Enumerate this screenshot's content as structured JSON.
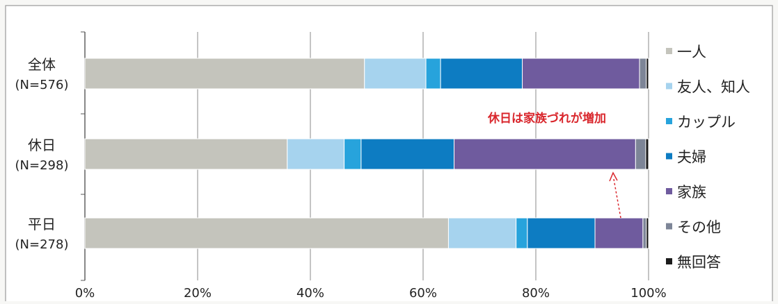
{
  "chart_data": {
    "type": "bar",
    "orientation": "horizontal",
    "stacked": "percent",
    "categories": [
      {
        "name": "全体",
        "n": "(N=576)"
      },
      {
        "name": "休日",
        "n": "(N=298)"
      },
      {
        "name": "平日",
        "n": "(N=278)"
      }
    ],
    "series": [
      {
        "name": "一人",
        "color": "#c4c4bc",
        "values": [
          49.6,
          35.9,
          64.5
        ]
      },
      {
        "name": "友人、知人",
        "color": "#a6d3ee",
        "values": [
          10.9,
          10.1,
          12.0
        ]
      },
      {
        "name": "カップル",
        "color": "#27a3dc",
        "values": [
          2.6,
          3.0,
          2.0
        ]
      },
      {
        "name": "夫婦",
        "color": "#0d7cc2",
        "values": [
          14.5,
          16.5,
          12.0
        ]
      },
      {
        "name": "家族",
        "color": "#6f5b9e",
        "values": [
          20.8,
          32.2,
          8.5
        ]
      },
      {
        "name": "その他",
        "color": "#7d8597",
        "values": [
          1.2,
          1.8,
          0.6
        ]
      },
      {
        "name": "無回答",
        "color": "#1b1b1b",
        "values": [
          0.4,
          0.5,
          0.4
        ]
      }
    ],
    "xlim": [
      0,
      100
    ],
    "x_ticks": [
      "0%",
      "20%",
      "40%",
      "60%",
      "80%",
      "100%"
    ],
    "grid": true,
    "legend_position": "right",
    "annotation": {
      "text": "休日は家族づれが増加",
      "color": "#d9262c"
    }
  }
}
